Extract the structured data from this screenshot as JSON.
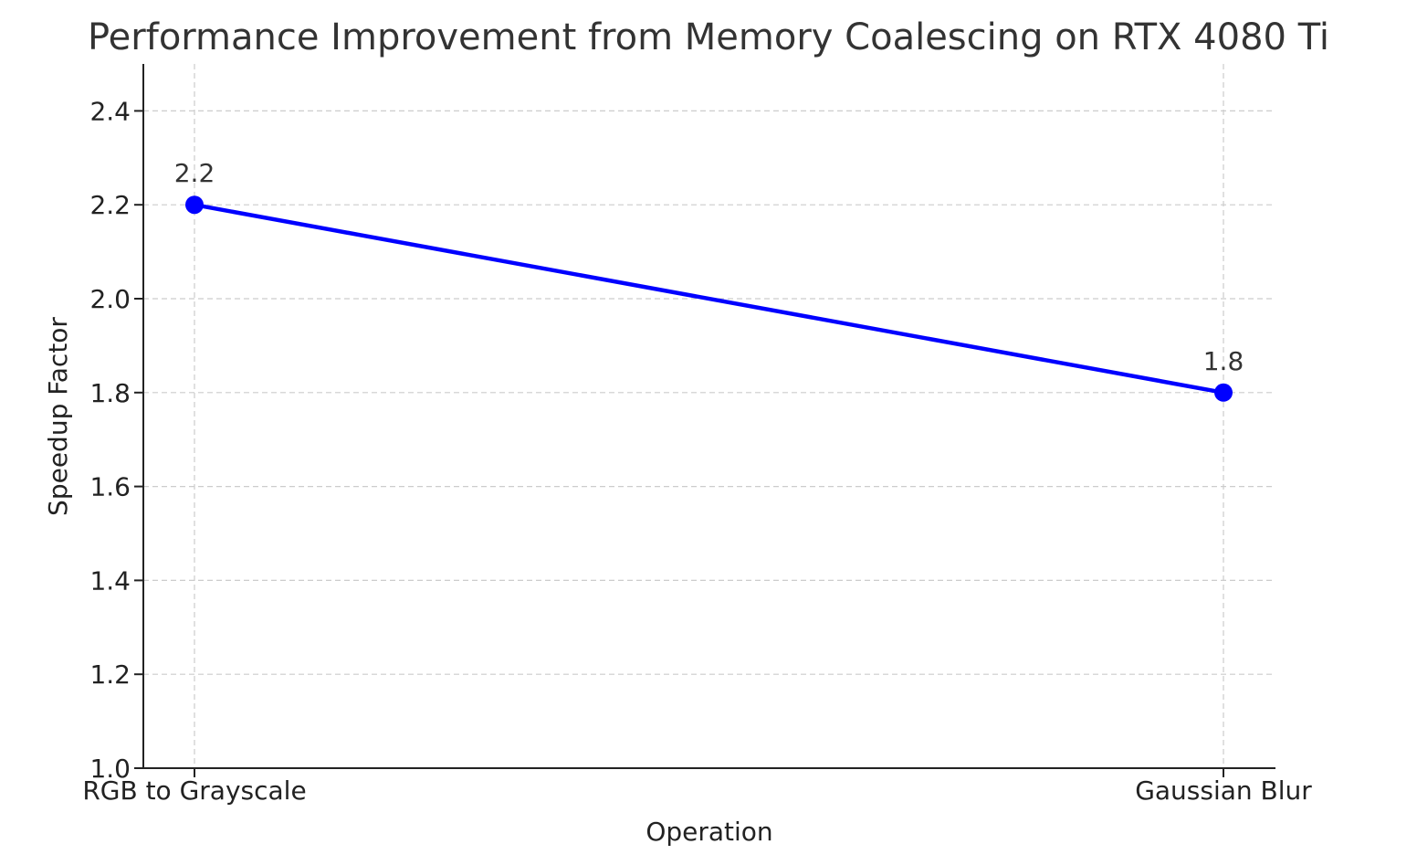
{
  "chart_data": {
    "type": "line",
    "title": "Performance Improvement from Memory Coalescing on RTX 4080 Ti",
    "xlabel": "Operation",
    "ylabel": "Speedup Factor",
    "categories": [
      "RGB to Grayscale",
      "Gaussian Blur"
    ],
    "series": [
      {
        "values": [
          2.2,
          1.8
        ],
        "data_labels": [
          "2.2",
          "1.8"
        ],
        "color": "#0000ff",
        "marker": "circle"
      }
    ],
    "ylim": [
      1.0,
      2.5
    ],
    "yticks": [
      1.0,
      1.2,
      1.4,
      1.6,
      1.8,
      2.0,
      2.2,
      2.4
    ],
    "ytick_labels": [
      "1.0",
      "1.2",
      "1.4",
      "1.6",
      "1.8",
      "2.0",
      "2.2",
      "2.4"
    ],
    "grid": true,
    "legend": false
  }
}
